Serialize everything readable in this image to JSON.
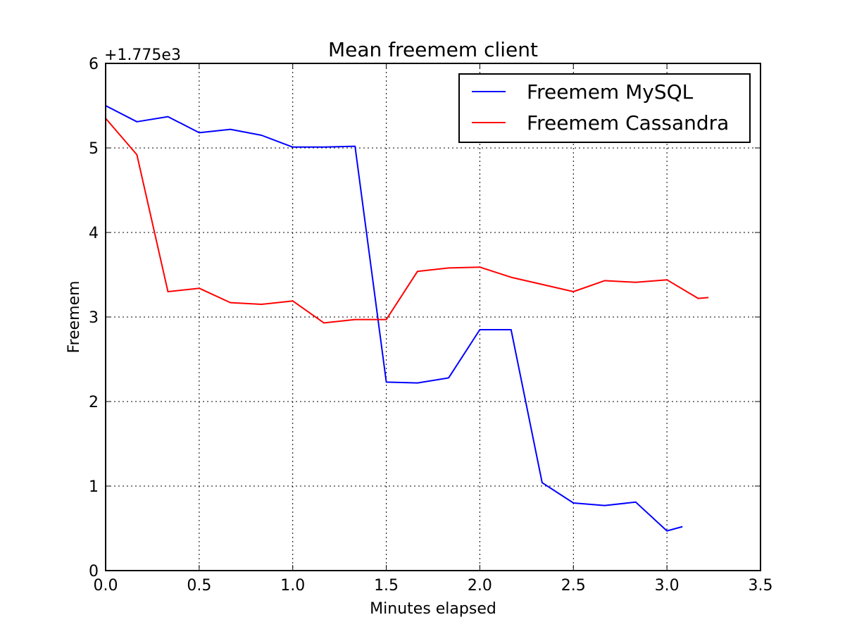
{
  "chart_data": {
    "type": "line",
    "title": "Mean freemem client",
    "xlabel": "Minutes elapsed",
    "ylabel": "Freemem",
    "offset_label": "+1.775e3",
    "xlim": [
      0.0,
      3.5
    ],
    "ylim": [
      0,
      6
    ],
    "x_ticks": [
      "0.0",
      "0.5",
      "1.0",
      "1.5",
      "2.0",
      "2.5",
      "3.0",
      "3.5"
    ],
    "y_ticks": [
      "0",
      "1",
      "2",
      "3",
      "4",
      "5",
      "6"
    ],
    "grid": true,
    "legend_position": "upper right",
    "series": [
      {
        "name": "Freemem MySQL",
        "color": "#0000ff",
        "x": [
          0.0,
          0.167,
          0.333,
          0.5,
          0.667,
          0.833,
          1.0,
          1.167,
          1.333,
          1.5,
          1.667,
          1.833,
          2.0,
          2.167,
          2.333,
          2.5,
          2.667,
          2.833,
          3.0,
          3.083
        ],
        "y": [
          5.5,
          5.31,
          5.37,
          5.18,
          5.22,
          5.15,
          5.01,
          5.01,
          5.02,
          2.23,
          2.22,
          2.28,
          2.85,
          2.85,
          1.04,
          0.8,
          0.77,
          0.81,
          0.47,
          0.52
        ]
      },
      {
        "name": "Freemem Cassandra",
        "color": "#ff0000",
        "x": [
          0.0,
          0.167,
          0.333,
          0.5,
          0.667,
          0.833,
          1.0,
          1.167,
          1.333,
          1.5,
          1.667,
          1.833,
          2.0,
          2.167,
          2.5,
          2.667,
          2.833,
          3.0,
          3.167,
          3.222
        ],
        "y": [
          5.35,
          4.92,
          3.3,
          3.34,
          3.17,
          3.15,
          3.19,
          2.93,
          2.97,
          2.97,
          3.54,
          3.58,
          3.59,
          3.47,
          3.3,
          3.43,
          3.41,
          3.44,
          3.22,
          3.23
        ]
      }
    ]
  }
}
